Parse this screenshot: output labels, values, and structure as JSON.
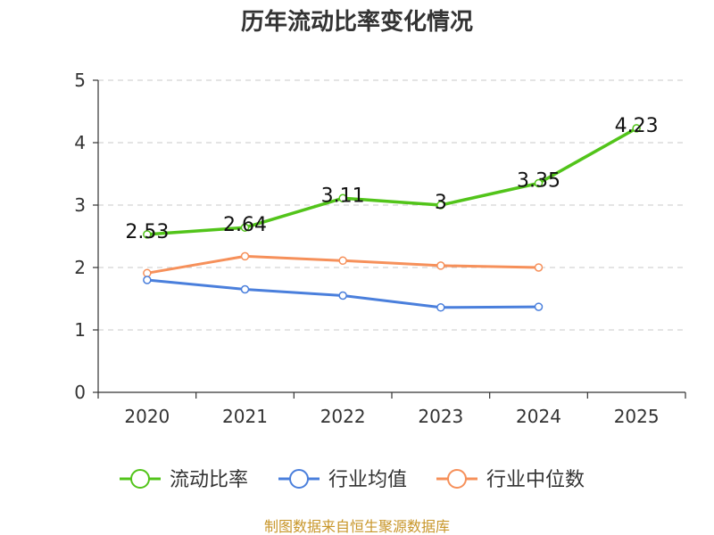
{
  "chart_data": {
    "type": "line",
    "title": "历年流动比率变化情况",
    "categories": [
      "2020",
      "2021",
      "2022",
      "2023",
      "2024",
      "2025"
    ],
    "ylim": [
      0,
      5
    ],
    "yticks": [
      0,
      1,
      2,
      3,
      4,
      5
    ],
    "grid": true,
    "legend_position": "bottom",
    "series": [
      {
        "name": "流动比率",
        "color": "#52c41a",
        "values": [
          2.53,
          2.64,
          3.11,
          3.0,
          3.35,
          4.23
        ],
        "data_labels": [
          "2.53",
          "2.64",
          "3.11",
          "3",
          "3.35",
          "4.23"
        ]
      },
      {
        "name": "行业均值",
        "color": "#4a7fdc",
        "values": [
          1.8,
          1.65,
          1.55,
          1.36,
          1.37,
          null
        ]
      },
      {
        "name": "行业中位数",
        "color": "#f6905a",
        "values": [
          1.91,
          2.18,
          2.11,
          2.03,
          2.0,
          null
        ]
      }
    ]
  },
  "source_text": "制图数据来自恒生聚源数据库"
}
